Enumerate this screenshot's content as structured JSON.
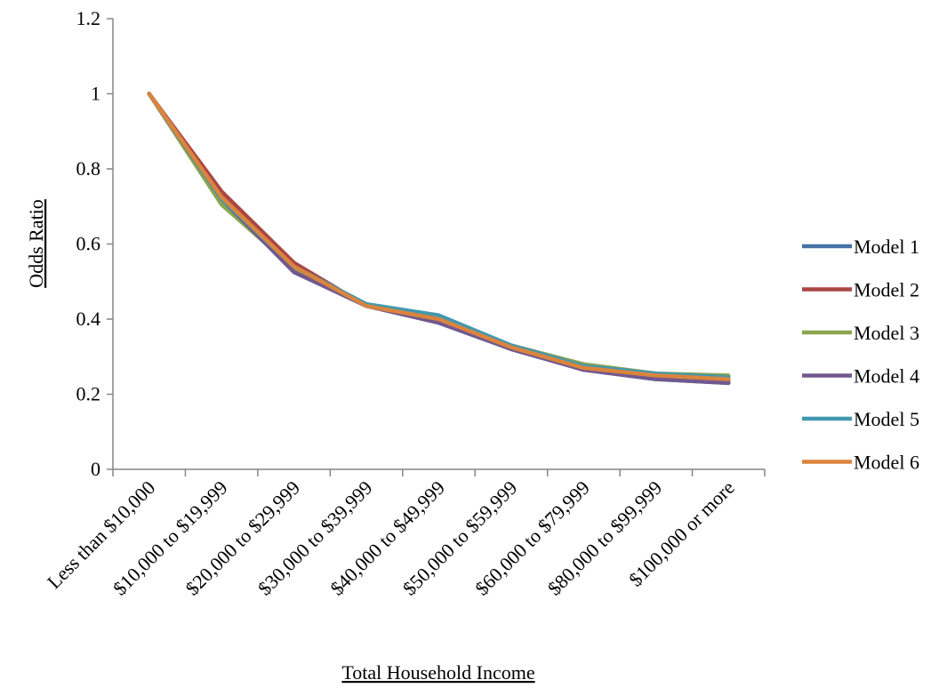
{
  "chart_data": {
    "type": "line",
    "title": "",
    "xlabel": "Total Household Income",
    "ylabel": "Odds Ratio",
    "ylim": [
      0,
      1.2
    ],
    "yticks": [
      "0",
      "0.2",
      "0.4",
      "0.6",
      "0.8",
      "1",
      "1.2"
    ],
    "grid": false,
    "legend_position": "right",
    "categories": [
      "Less than $10,000",
      "$10,000 to $19,999",
      "$20,000 to $29,999",
      "$30,000 to $39,999",
      "$40,000 to $49,999",
      "$50,000 to $59,999",
      "$60,000 to $79,999",
      "$80,000 to $99,999",
      "$100,000 or more"
    ],
    "series": [
      {
        "name": "Model 1",
        "color": "#4572A7",
        "values": [
          1,
          0.72,
          0.53,
          0.435,
          0.395,
          0.32,
          0.265,
          0.24,
          0.23
        ]
      },
      {
        "name": "Model 2",
        "color": "#AA4643",
        "values": [
          1,
          0.74,
          0.55,
          0.435,
          0.4,
          0.325,
          0.265,
          0.245,
          0.235
        ]
      },
      {
        "name": "Model 3",
        "color": "#89A54E",
        "values": [
          1,
          0.705,
          0.535,
          0.435,
          0.405,
          0.33,
          0.28,
          0.255,
          0.25
        ]
      },
      {
        "name": "Model 4",
        "color": "#71588F",
        "values": [
          1,
          0.72,
          0.525,
          0.435,
          0.39,
          0.32,
          0.265,
          0.24,
          0.23
        ]
      },
      {
        "name": "Model 5",
        "color": "#4198AF",
        "values": [
          1,
          0.72,
          0.54,
          0.44,
          0.41,
          0.33,
          0.275,
          0.255,
          0.245
        ]
      },
      {
        "name": "Model 6",
        "color": "#DB843D",
        "values": [
          1,
          0.725,
          0.54,
          0.435,
          0.4,
          0.325,
          0.27,
          0.25,
          0.24
        ]
      }
    ]
  }
}
